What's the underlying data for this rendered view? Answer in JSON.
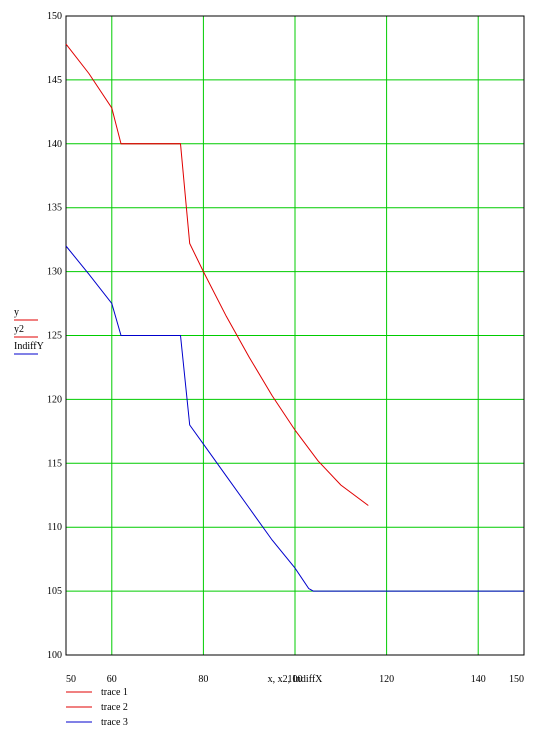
{
  "chart_data": {
    "type": "line",
    "xlabel": "x, x2, IndiffX",
    "ylabel_entries": [
      "y",
      "y2",
      "IndiffY"
    ],
    "xlim": [
      50,
      150
    ],
    "ylim": [
      100,
      150
    ],
    "x_ticks": [
      50,
      60,
      80,
      100,
      120,
      140,
      150
    ],
    "y_ticks": [
      100,
      105,
      110,
      115,
      120,
      125,
      130,
      135,
      140,
      145,
      150
    ],
    "grid": true,
    "grid_color": "#00cc00",
    "legend_position": "bottom-left",
    "series": [
      {
        "name": "trace 1",
        "color": "#e00000",
        "points": [
          [
            50,
            147.8
          ],
          [
            55,
            145.5
          ],
          [
            60,
            142.8
          ],
          [
            62,
            140
          ],
          [
            75,
            140
          ],
          [
            77,
            132.2
          ],
          [
            80,
            130
          ],
          [
            85,
            126.5
          ],
          [
            90,
            123.3
          ],
          [
            95,
            120.3
          ],
          [
            100,
            117.6
          ],
          [
            105,
            115.2
          ],
          [
            110,
            113.3
          ],
          [
            116,
            111.7
          ]
        ]
      },
      {
        "name": "trace 2",
        "color": "#e00000",
        "points": [
          [
            62,
            140
          ],
          [
            75,
            140
          ]
        ]
      },
      {
        "name": "trace 3",
        "color": "#0000cc",
        "points": [
          [
            50,
            132
          ],
          [
            55,
            129.8
          ],
          [
            60,
            127.5
          ],
          [
            62,
            125
          ],
          [
            75,
            125
          ],
          [
            77,
            118
          ],
          [
            80,
            116.5
          ],
          [
            85,
            114
          ],
          [
            90,
            111.5
          ],
          [
            95,
            109
          ],
          [
            100,
            106.8
          ],
          [
            103,
            105.2
          ],
          [
            104,
            105
          ],
          [
            150,
            105
          ]
        ]
      }
    ]
  }
}
